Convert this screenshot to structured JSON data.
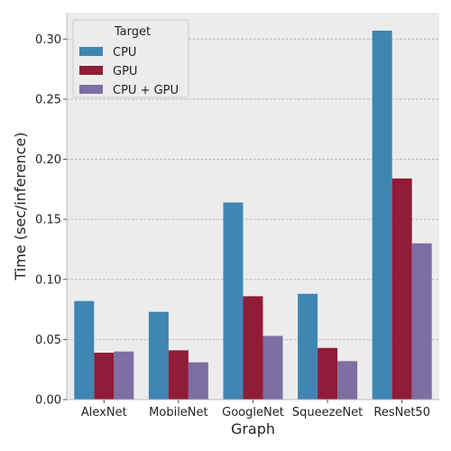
{
  "chart_data": {
    "type": "bar",
    "xlabel": "Graph",
    "ylabel": "Time (sec/inference)",
    "categories": [
      "AlexNet",
      "MobileNet",
      "GoogleNet",
      "SqueezeNet",
      "ResNet50"
    ],
    "ylim": [
      0,
      0.322
    ],
    "yticks": [
      "0.00",
      "0.05",
      "0.10",
      "0.15",
      "0.20",
      "0.25",
      "0.30"
    ],
    "ytick_values": [
      0,
      0.05,
      0.1,
      0.15,
      0.2,
      0.25,
      0.3
    ],
    "grid": true,
    "legend": {
      "title": "Target",
      "placement": "top-left"
    },
    "series": [
      {
        "name": "CPU",
        "color": "#3f86b4",
        "values": [
          0.082,
          0.073,
          0.164,
          0.088,
          0.307
        ]
      },
      {
        "name": "GPU",
        "color": "#901c37",
        "values": [
          0.039,
          0.041,
          0.086,
          0.043,
          0.184
        ]
      },
      {
        "name": "CPU + GPU",
        "color": "#7d6ea3",
        "values": [
          0.04,
          0.031,
          0.053,
          0.032,
          0.13
        ]
      }
    ]
  }
}
